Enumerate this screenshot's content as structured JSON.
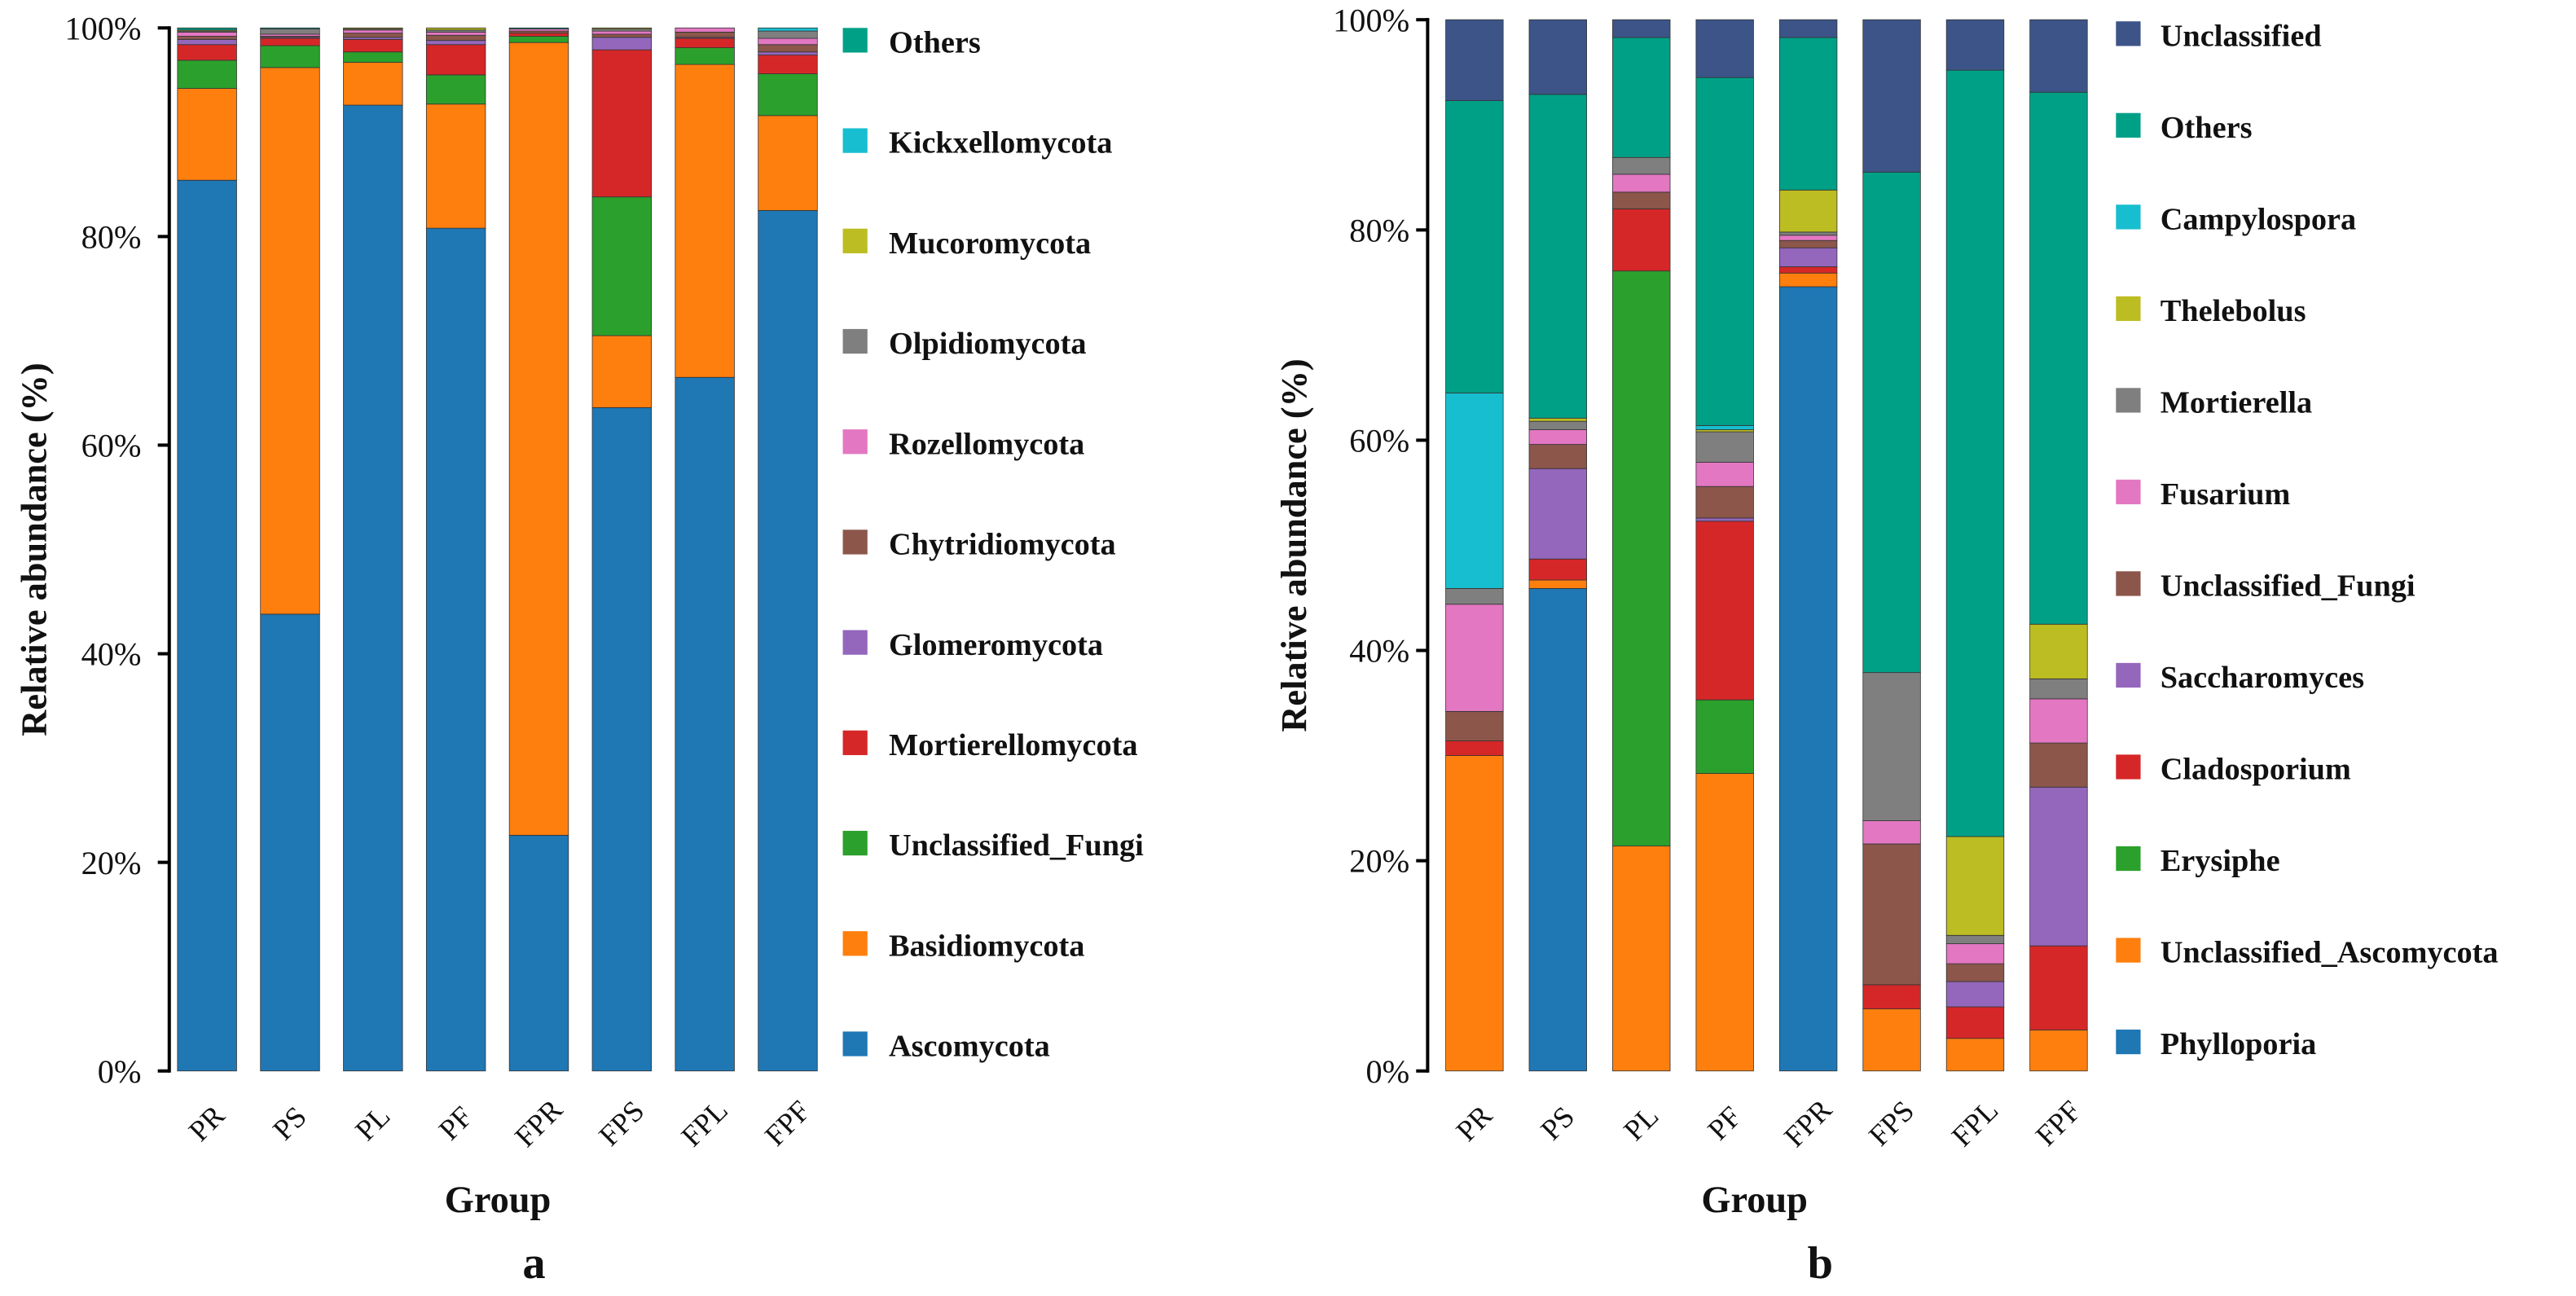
{
  "chart_data": [
    {
      "type": "bar",
      "stacked": true,
      "panel_label": "a",
      "xlabel": "Group",
      "ylabel": "Relative abundance (%)",
      "ylim": [
        0,
        100
      ],
      "yticks": [
        "0%",
        "20%",
        "40%",
        "60%",
        "80%",
        "100%"
      ],
      "categories": [
        "PR",
        "PS",
        "PL",
        "PF",
        "FPR",
        "FPS",
        "FPL",
        "FPF"
      ],
      "legend_position": "right",
      "series": [
        {
          "name": "Ascomycota",
          "color": "#1f77b4",
          "values": [
            85.4,
            43.8,
            92.6,
            80.8,
            22.6,
            63.6,
            66.5,
            82.5
          ]
        },
        {
          "name": "Basidiomycota",
          "color": "#ff7f0e",
          "values": [
            8.8,
            52.4,
            4.1,
            11.9,
            76.0,
            6.9,
            30.0,
            9.1
          ]
        },
        {
          "name": "Unclassified_Fungi",
          "color": "#2ca02c",
          "values": [
            2.7,
            2.1,
            1.0,
            2.8,
            0.6,
            13.3,
            1.6,
            4.0
          ]
        },
        {
          "name": "Mortierellomycota",
          "color": "#d62728",
          "values": [
            1.5,
            0.7,
            1.2,
            2.9,
            0.3,
            14.1,
            0.9,
            1.8
          ]
        },
        {
          "name": "Glomeromycota",
          "color": "#9467bd",
          "values": [
            0.5,
            0.1,
            0.2,
            0.4,
            0.0,
            1.2,
            0.1,
            0.3
          ]
        },
        {
          "name": "Chytridiomycota",
          "color": "#8c564b",
          "values": [
            0.3,
            0.1,
            0.4,
            0.5,
            0.2,
            0.3,
            0.5,
            0.7
          ]
        },
        {
          "name": "Rozellomycota",
          "color": "#e377c2",
          "values": [
            0.4,
            0.2,
            0.3,
            0.3,
            0.2,
            0.3,
            0.4,
            0.6
          ]
        },
        {
          "name": "Olpidiomycota",
          "color": "#7f7f7f",
          "values": [
            0.1,
            0.5,
            0.1,
            0.2,
            0.0,
            0.2,
            0.0,
            0.7
          ]
        },
        {
          "name": "Mucoromycota",
          "color": "#bcbd22",
          "values": [
            0.1,
            0.0,
            0.1,
            0.2,
            0.0,
            0.1,
            0.0,
            0.0
          ]
        },
        {
          "name": "Kickxellomycota",
          "color": "#17becf",
          "values": [
            0.0,
            0.0,
            0.0,
            0.0,
            0.0,
            0.0,
            0.0,
            0.3
          ]
        },
        {
          "name": "Others",
          "color": "#00a087",
          "values": [
            0.2,
            0.1,
            0.0,
            0.0,
            0.1,
            0.0,
            0.0,
            0.0
          ]
        }
      ]
    },
    {
      "type": "bar",
      "stacked": true,
      "panel_label": "b",
      "xlabel": "Group",
      "ylabel": "Relative abundance (%)",
      "ylim": [
        0,
        100
      ],
      "yticks": [
        "0%",
        "20%",
        "40%",
        "60%",
        "80%",
        "100%"
      ],
      "categories": [
        "PR",
        "PS",
        "PL",
        "PF",
        "FPR",
        "FPS",
        "FPL",
        "FPF"
      ],
      "legend_position": "right",
      "series": [
        {
          "name": "Phylloporia",
          "color": "#1f77b4",
          "values": [
            0.0,
            45.9,
            0.0,
            0.0,
            74.6,
            0.0,
            0.0,
            0.0
          ]
        },
        {
          "name": "Unclassified_Ascomycota",
          "color": "#ff7f0e",
          "values": [
            30.0,
            0.8,
            21.4,
            28.3,
            1.3,
            5.9,
            3.1,
            3.9
          ]
        },
        {
          "name": "Erysiphe",
          "color": "#2ca02c",
          "values": [
            0.0,
            0.0,
            54.7,
            7.0,
            0.0,
            0.0,
            0.0,
            0.0
          ]
        },
        {
          "name": "Cladosporium",
          "color": "#d62728",
          "values": [
            1.4,
            2.0,
            5.9,
            17.0,
            0.6,
            2.3,
            3.0,
            8.0
          ]
        },
        {
          "name": "Saccharomyces",
          "color": "#9467bd",
          "values": [
            0.0,
            8.6,
            0.0,
            0.3,
            1.8,
            0.0,
            2.4,
            15.1
          ]
        },
        {
          "name": "Unclassified_Fungi",
          "color": "#8c564b",
          "values": [
            2.8,
            2.3,
            1.6,
            3.0,
            0.7,
            13.4,
            1.7,
            4.2
          ]
        },
        {
          "name": "Fusarium",
          "color": "#e377c2",
          "values": [
            10.2,
            1.4,
            1.7,
            2.3,
            0.5,
            2.2,
            1.9,
            4.2
          ]
        },
        {
          "name": "Mortierella",
          "color": "#7f7f7f",
          "values": [
            1.5,
            0.8,
            1.6,
            2.9,
            0.3,
            14.1,
            0.8,
            1.9
          ]
        },
        {
          "name": "Thelebolus",
          "color": "#bcbd22",
          "values": [
            0.0,
            0.3,
            0.0,
            0.2,
            4.0,
            0.0,
            9.4,
            5.2
          ]
        },
        {
          "name": "Campylospora",
          "color": "#17becf",
          "values": [
            18.6,
            0.0,
            0.0,
            0.4,
            0.0,
            0.0,
            0.0,
            0.0
          ]
        },
        {
          "name": "Others",
          "color": "#00a087",
          "values": [
            27.8,
            30.8,
            11.4,
            33.1,
            14.5,
            47.6,
            72.9,
            50.6
          ]
        },
        {
          "name": "Unclassified",
          "color": "#3c5488",
          "values": [
            7.7,
            7.1,
            1.7,
            5.5,
            1.7,
            14.5,
            4.8,
            6.9
          ]
        }
      ]
    }
  ]
}
